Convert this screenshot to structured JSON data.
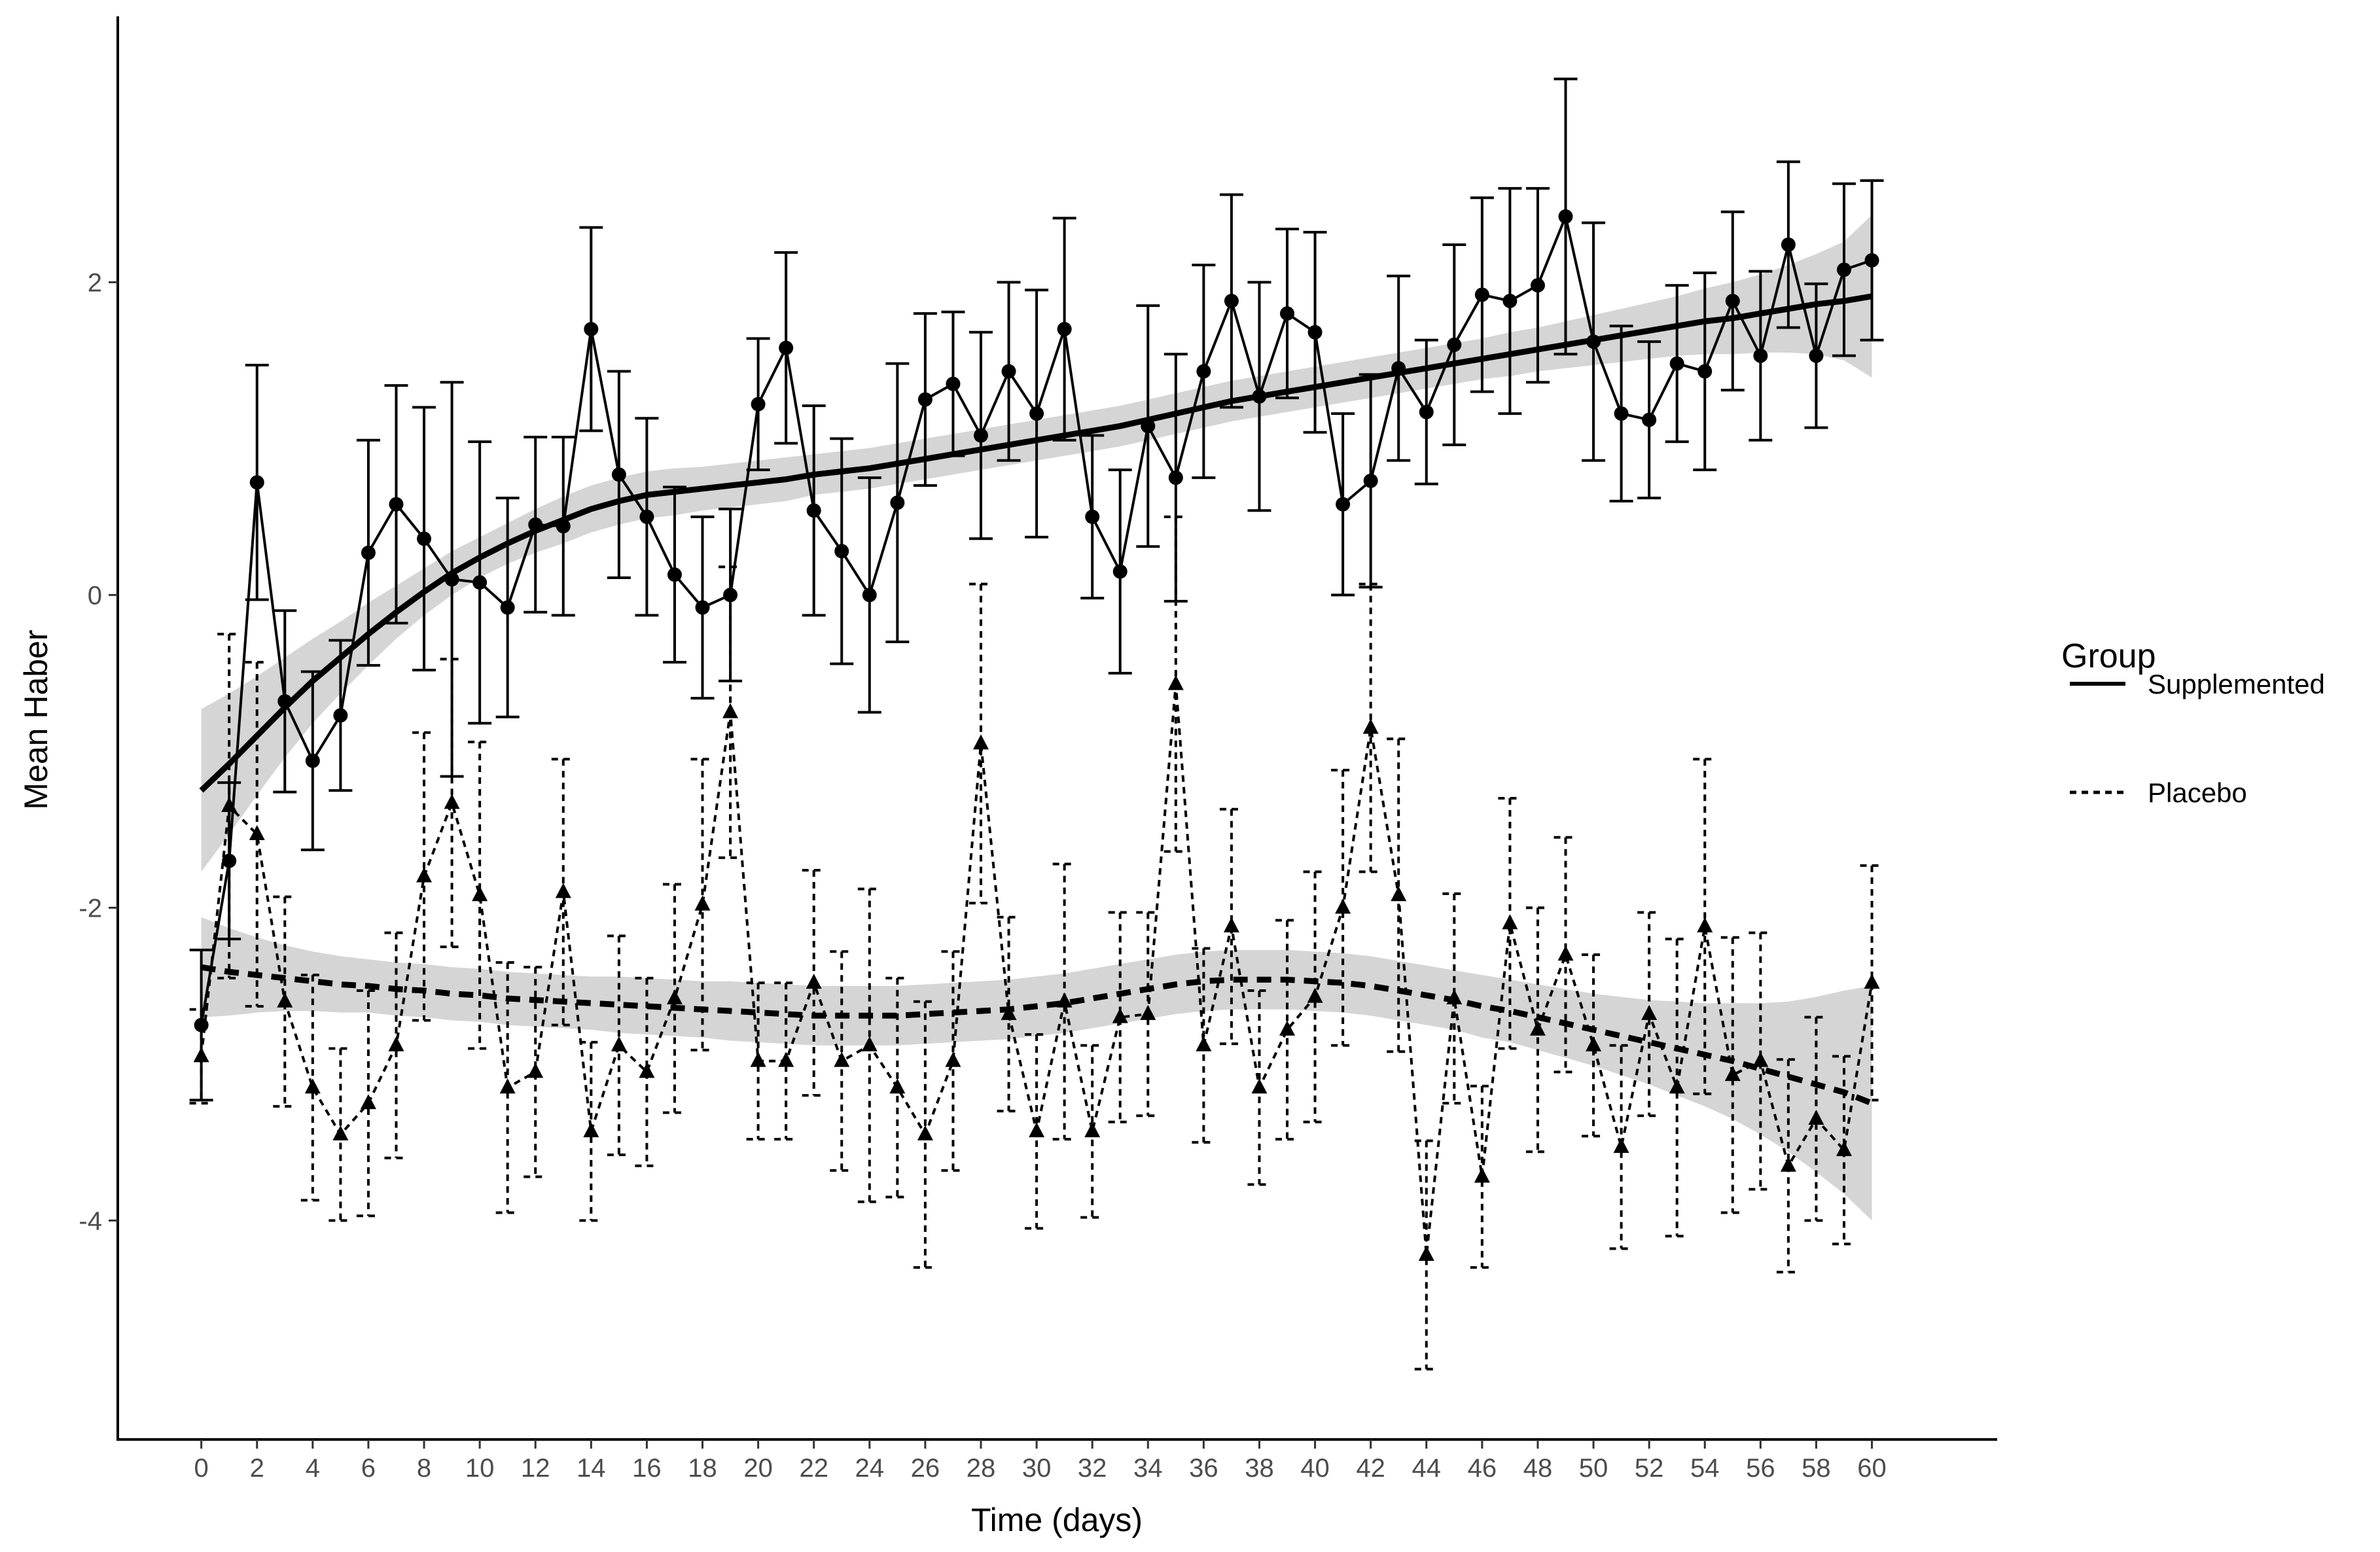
{
  "chart_data": {
    "type": "line",
    "xlabel": "Time (days)",
    "ylabel": "Mean Haber",
    "xlim": [
      -3,
      64.5
    ],
    "ylim": [
      -5.4,
      3.7
    ],
    "x_ticks": [
      0,
      2,
      4,
      6,
      8,
      10,
      12,
      14,
      16,
      18,
      20,
      22,
      24,
      26,
      28,
      30,
      32,
      34,
      36,
      38,
      40,
      42,
      44,
      46,
      48,
      50,
      52,
      54,
      56,
      58,
      60
    ],
    "y_ticks": [
      -4,
      -2,
      0,
      2
    ],
    "grid": false,
    "legend": {
      "title": "Group",
      "position": "right"
    },
    "series": [
      {
        "name": "Supplemented",
        "style": "solid",
        "marker": "circle",
        "color": "#000000",
        "x": [
          0,
          1,
          2,
          3,
          4,
          5,
          6,
          7,
          8,
          9,
          10,
          11,
          12,
          13,
          14,
          15,
          16,
          17,
          18,
          19,
          20,
          21,
          22,
          23,
          24,
          25,
          26,
          27,
          28,
          29,
          30,
          31,
          32,
          33,
          34,
          35,
          36,
          37,
          38,
          39,
          40,
          41,
          42,
          43,
          44,
          45,
          46,
          47,
          48,
          49,
          50,
          51,
          52,
          53,
          54,
          55,
          56,
          57,
          58,
          59,
          60
        ],
        "mean": [
          -2.75,
          -1.7,
          0.72,
          -0.68,
          -1.06,
          -0.77,
          0.27,
          0.58,
          0.36,
          0.1,
          0.08,
          -0.08,
          0.45,
          0.44,
          1.7,
          0.77,
          0.5,
          0.13,
          -0.08,
          0.0,
          1.22,
          1.58,
          0.54,
          0.28,
          0.0,
          0.59,
          1.25,
          1.35,
          1.02,
          1.43,
          1.16,
          1.7,
          0.5,
          0.15,
          1.08,
          0.75,
          1.43,
          1.88,
          1.27,
          1.8,
          1.68,
          0.58,
          0.73,
          1.45,
          1.17,
          1.6,
          1.92,
          1.88,
          1.98,
          2.42,
          1.62,
          1.16,
          1.12,
          1.48,
          1.43,
          1.88,
          1.53,
          2.24,
          1.53,
          2.08,
          2.14
        ],
        "error": [
          0.48,
          0.5,
          0.75,
          0.58,
          0.57,
          0.48,
          0.72,
          0.76,
          0.84,
          1.26,
          0.9,
          0.7,
          0.56,
          0.57,
          0.65,
          0.66,
          0.63,
          0.56,
          0.58,
          0.55,
          0.42,
          0.61,
          0.67,
          0.72,
          0.75,
          0.89,
          0.55,
          0.46,
          0.66,
          0.57,
          0.79,
          0.71,
          0.52,
          0.65,
          0.77,
          0.79,
          0.68,
          0.68,
          0.73,
          0.54,
          0.64,
          0.58,
          0.68,
          0.59,
          0.46,
          0.64,
          0.62,
          0.72,
          0.62,
          0.88,
          0.76,
          0.56,
          0.5,
          0.5,
          0.63,
          0.57,
          0.54,
          0.53,
          0.46,
          0.55,
          0.51
        ],
        "smooth": [
          -1.25,
          -1.08,
          -0.9,
          -0.72,
          -0.55,
          -0.4,
          -0.25,
          -0.11,
          0.02,
          0.14,
          0.24,
          0.33,
          0.41,
          0.48,
          0.55,
          0.6,
          0.64,
          0.66,
          0.68,
          0.7,
          0.72,
          0.74,
          0.77,
          0.79,
          0.81,
          0.84,
          0.87,
          0.9,
          0.93,
          0.96,
          0.99,
          1.02,
          1.05,
          1.08,
          1.12,
          1.16,
          1.2,
          1.24,
          1.27,
          1.3,
          1.33,
          1.36,
          1.39,
          1.42,
          1.45,
          1.48,
          1.51,
          1.54,
          1.57,
          1.6,
          1.63,
          1.66,
          1.69,
          1.72,
          1.75,
          1.77,
          1.8,
          1.83,
          1.86,
          1.88,
          1.91
        ],
        "band": [
          0.52,
          0.45,
          0.38,
          0.32,
          0.27,
          0.23,
          0.2,
          0.17,
          0.15,
          0.14,
          0.13,
          0.13,
          0.14,
          0.15,
          0.15,
          0.15,
          0.15,
          0.15,
          0.14,
          0.14,
          0.14,
          0.14,
          0.13,
          0.13,
          0.13,
          0.13,
          0.13,
          0.13,
          0.13,
          0.13,
          0.13,
          0.13,
          0.13,
          0.13,
          0.13,
          0.13,
          0.13,
          0.13,
          0.13,
          0.13,
          0.13,
          0.13,
          0.13,
          0.13,
          0.13,
          0.13,
          0.13,
          0.14,
          0.14,
          0.15,
          0.16,
          0.17,
          0.18,
          0.19,
          0.21,
          0.23,
          0.25,
          0.28,
          0.32,
          0.38,
          0.52
        ]
      },
      {
        "name": "Placebo",
        "style": "dashed",
        "marker": "triangle",
        "color": "#000000",
        "x": [
          0,
          1,
          2,
          3,
          4,
          5,
          6,
          7,
          8,
          9,
          10,
          11,
          12,
          13,
          14,
          15,
          16,
          17,
          18,
          19,
          20,
          21,
          22,
          23,
          24,
          25,
          26,
          27,
          28,
          29,
          30,
          31,
          32,
          33,
          34,
          35,
          36,
          37,
          38,
          39,
          40,
          41,
          42,
          43,
          44,
          45,
          46,
          47,
          48,
          49,
          50,
          51,
          52,
          53,
          54,
          55,
          56,
          57,
          58,
          59,
          60
        ],
        "mean": [
          -2.95,
          -1.35,
          -1.53,
          -2.6,
          -3.15,
          -3.45,
          -3.25,
          -2.88,
          -1.8,
          -1.33,
          -1.92,
          -3.15,
          -3.05,
          -1.9,
          -3.43,
          -2.88,
          -3.05,
          -2.58,
          -1.98,
          -0.75,
          -2.98,
          -2.98,
          -2.48,
          -2.98,
          -2.88,
          -3.15,
          -3.45,
          -2.98,
          -0.95,
          -2.68,
          -3.43,
          -2.6,
          -3.43,
          -2.7,
          -2.68,
          -0.57,
          -2.88,
          -2.12,
          -3.15,
          -2.78,
          -2.57,
          -2.0,
          -0.85,
          -1.92,
          -4.22,
          -2.58,
          -3.72,
          -2.1,
          -2.78,
          -2.3,
          -2.88,
          -3.53,
          -2.68,
          -3.15,
          -2.12,
          -3.07,
          -2.98,
          -3.65,
          -3.35,
          -3.55,
          -2.48
        ],
        "error": [
          0.3,
          1.1,
          1.1,
          0.67,
          0.72,
          0.55,
          0.72,
          0.72,
          0.92,
          0.92,
          0.98,
          0.8,
          0.67,
          0.85,
          0.57,
          0.7,
          0.6,
          0.73,
          0.93,
          0.93,
          0.5,
          0.5,
          0.72,
          0.7,
          1.0,
          0.7,
          0.85,
          0.7,
          1.02,
          0.62,
          0.62,
          0.88,
          0.55,
          0.67,
          0.65,
          1.07,
          0.62,
          0.75,
          0.62,
          0.7,
          0.8,
          0.88,
          0.92,
          1.0,
          0.73,
          0.67,
          0.58,
          0.8,
          0.78,
          0.75,
          0.58,
          0.65,
          0.65,
          0.95,
          1.07,
          0.88,
          0.82,
          0.68,
          0.65,
          0.6,
          0.75
        ],
        "smooth": [
          -2.38,
          -2.41,
          -2.43,
          -2.45,
          -2.47,
          -2.49,
          -2.5,
          -2.52,
          -2.53,
          -2.55,
          -2.56,
          -2.58,
          -2.59,
          -2.6,
          -2.61,
          -2.62,
          -2.63,
          -2.64,
          -2.65,
          -2.66,
          -2.67,
          -2.68,
          -2.69,
          -2.69,
          -2.69,
          -2.69,
          -2.68,
          -2.67,
          -2.66,
          -2.65,
          -2.63,
          -2.61,
          -2.58,
          -2.55,
          -2.52,
          -2.49,
          -2.47,
          -2.46,
          -2.46,
          -2.46,
          -2.47,
          -2.48,
          -2.5,
          -2.53,
          -2.56,
          -2.59,
          -2.63,
          -2.66,
          -2.7,
          -2.74,
          -2.78,
          -2.82,
          -2.86,
          -2.9,
          -2.94,
          -2.98,
          -3.03,
          -3.08,
          -3.13,
          -3.18,
          -3.25
        ]
      }
    ],
    "placebo_band": [
      0.32,
      0.28,
      0.24,
      0.21,
      0.19,
      0.18,
      0.17,
      0.17,
      0.17,
      0.17,
      0.17,
      0.17,
      0.17,
      0.17,
      0.17,
      0.18,
      0.18,
      0.18,
      0.18,
      0.19,
      0.19,
      0.19,
      0.19,
      0.19,
      0.19,
      0.19,
      0.19,
      0.19,
      0.19,
      0.19,
      0.19,
      0.19,
      0.19,
      0.19,
      0.19,
      0.19,
      0.19,
      0.19,
      0.19,
      0.19,
      0.19,
      0.19,
      0.19,
      0.19,
      0.19,
      0.19,
      0.2,
      0.2,
      0.21,
      0.22,
      0.23,
      0.25,
      0.27,
      0.3,
      0.33,
      0.37,
      0.42,
      0.48,
      0.56,
      0.65,
      0.75
    ]
  }
}
